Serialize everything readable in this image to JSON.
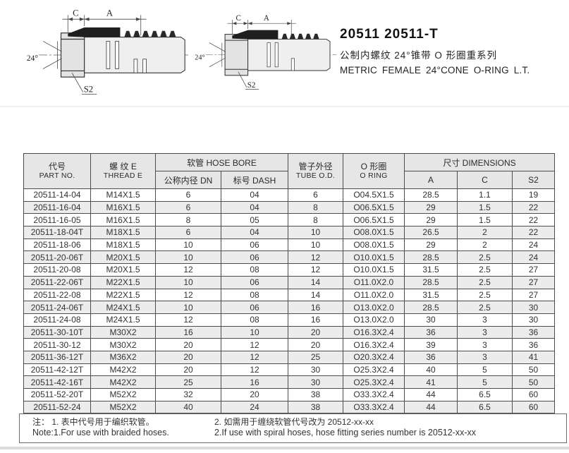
{
  "title": {
    "part_numbers": "20511 20511-T",
    "subtitle_cn": "公制内螺纹 24°锥带 O 形圈重系列",
    "subtitle_en": "METRIC FEMALE 24°CONE O-RING L.T."
  },
  "drawings": {
    "labels": {
      "c": "C",
      "a": "A",
      "angle": "24°",
      "s2": "S2"
    }
  },
  "table": {
    "headers": {
      "part_no_cn": "代号",
      "part_no_en": "PART NO.",
      "thread_cn": "螺 纹 E",
      "thread_en": "THREAD E",
      "hose_bore_group": "软管  HOSE BORE",
      "dn": "公称内径 DN",
      "dash": "标号 DASH",
      "tube_od_cn": "管子外径",
      "tube_od_en": "TUBE O.D.",
      "oring_cn": "O 形圈",
      "oring_en": "O RING",
      "dimensions_group": "尺寸 DIMENSIONS",
      "dim_a": "A",
      "dim_c": "C",
      "dim_s2": "S2"
    },
    "column_keys": [
      "part-no",
      "thread",
      "dn",
      "dash",
      "tube-od",
      "o-ring",
      "dim-a",
      "dim-c",
      "dim-s2"
    ],
    "rows": [
      [
        "20511-14-04",
        "M14X1.5",
        "6",
        "04",
        "6",
        "O04.5X1.5",
        "28.5",
        "1.1",
        "19"
      ],
      [
        "20511-16-04",
        "M16X1.5",
        "6",
        "04",
        "8",
        "O06.5X1.5",
        "29",
        "1.5",
        "22"
      ],
      [
        "20511-16-05",
        "M16X1.5",
        "8",
        "05",
        "8",
        "O06.5X1.5",
        "29",
        "1.5",
        "22"
      ],
      [
        "20511-18-04T",
        "M18X1.5",
        "6",
        "04",
        "10",
        "O08.0X1.5",
        "26.5",
        "2",
        "22"
      ],
      [
        "20511-18-06",
        "M18X1.5",
        "10",
        "06",
        "10",
        "O08.0X1.5",
        "29",
        "2",
        "24"
      ],
      [
        "20511-20-06T",
        "M20X1.5",
        "10",
        "06",
        "12",
        "O10.0X1.5",
        "28.5",
        "2.5",
        "24"
      ],
      [
        "20511-20-08",
        "M20X1.5",
        "12",
        "08",
        "12",
        "O10.0X1.5",
        "31.5",
        "2.5",
        "27"
      ],
      [
        "20511-22-06T",
        "M22X1.5",
        "10",
        "06",
        "14",
        "O11.0X2.0",
        "28.5",
        "2.5",
        "27"
      ],
      [
        "20511-22-08",
        "M22X1.5",
        "12",
        "08",
        "14",
        "O11.0X2.0",
        "31.5",
        "2.5",
        "27"
      ],
      [
        "20511-24-06T",
        "M24X1.5",
        "10",
        "06",
        "16",
        "O13.0X2.0",
        "28.5",
        "2.5",
        "30"
      ],
      [
        "20511-24-08",
        "M24X1.5",
        "12",
        "08",
        "16",
        "O13.0X2.0",
        "30",
        "3",
        "30"
      ],
      [
        "20511-30-10T",
        "M30X2",
        "16",
        "10",
        "20",
        "O16.3X2.4",
        "36",
        "3",
        "36"
      ],
      [
        "20511-30-12",
        "M30X2",
        "20",
        "12",
        "20",
        "O16.3X2.4",
        "39",
        "3",
        "36"
      ],
      [
        "20511-36-12T",
        "M36X2",
        "20",
        "12",
        "25",
        "O20.3X2.4",
        "36",
        "3",
        "41"
      ],
      [
        "20511-42-12T",
        "M42X2",
        "20",
        "12",
        "30",
        "O25.3X2.4",
        "40",
        "5",
        "50"
      ],
      [
        "20511-42-16T",
        "M42X2",
        "25",
        "16",
        "30",
        "O25.3X2.4",
        "41",
        "5",
        "50"
      ],
      [
        "20511-52-20T",
        "M52X2",
        "32",
        "20",
        "38",
        "O33.3X2.4",
        "44",
        "6.5",
        "60"
      ],
      [
        "20511-52-24",
        "M52X2",
        "40",
        "24",
        "38",
        "O33.3X2.4",
        "44",
        "6.5",
        "60"
      ]
    ]
  },
  "notes": {
    "cn_1": "注： 1. 表中代号用于编织软管。",
    "cn_2": "2. 如需用于缠绕软管代号改为 20512-xx-xx",
    "en_1": "Note:1.For use with braided hoses.",
    "en_2": "2.If use with spiral hoses, hose fitting series number is 20512-xx-xx"
  },
  "colors": {
    "header_bg": "#e6e6e6",
    "stripe_bg": "#ececec",
    "border": "#4d4d4d",
    "crimp_fill": "#1f1f1f"
  }
}
